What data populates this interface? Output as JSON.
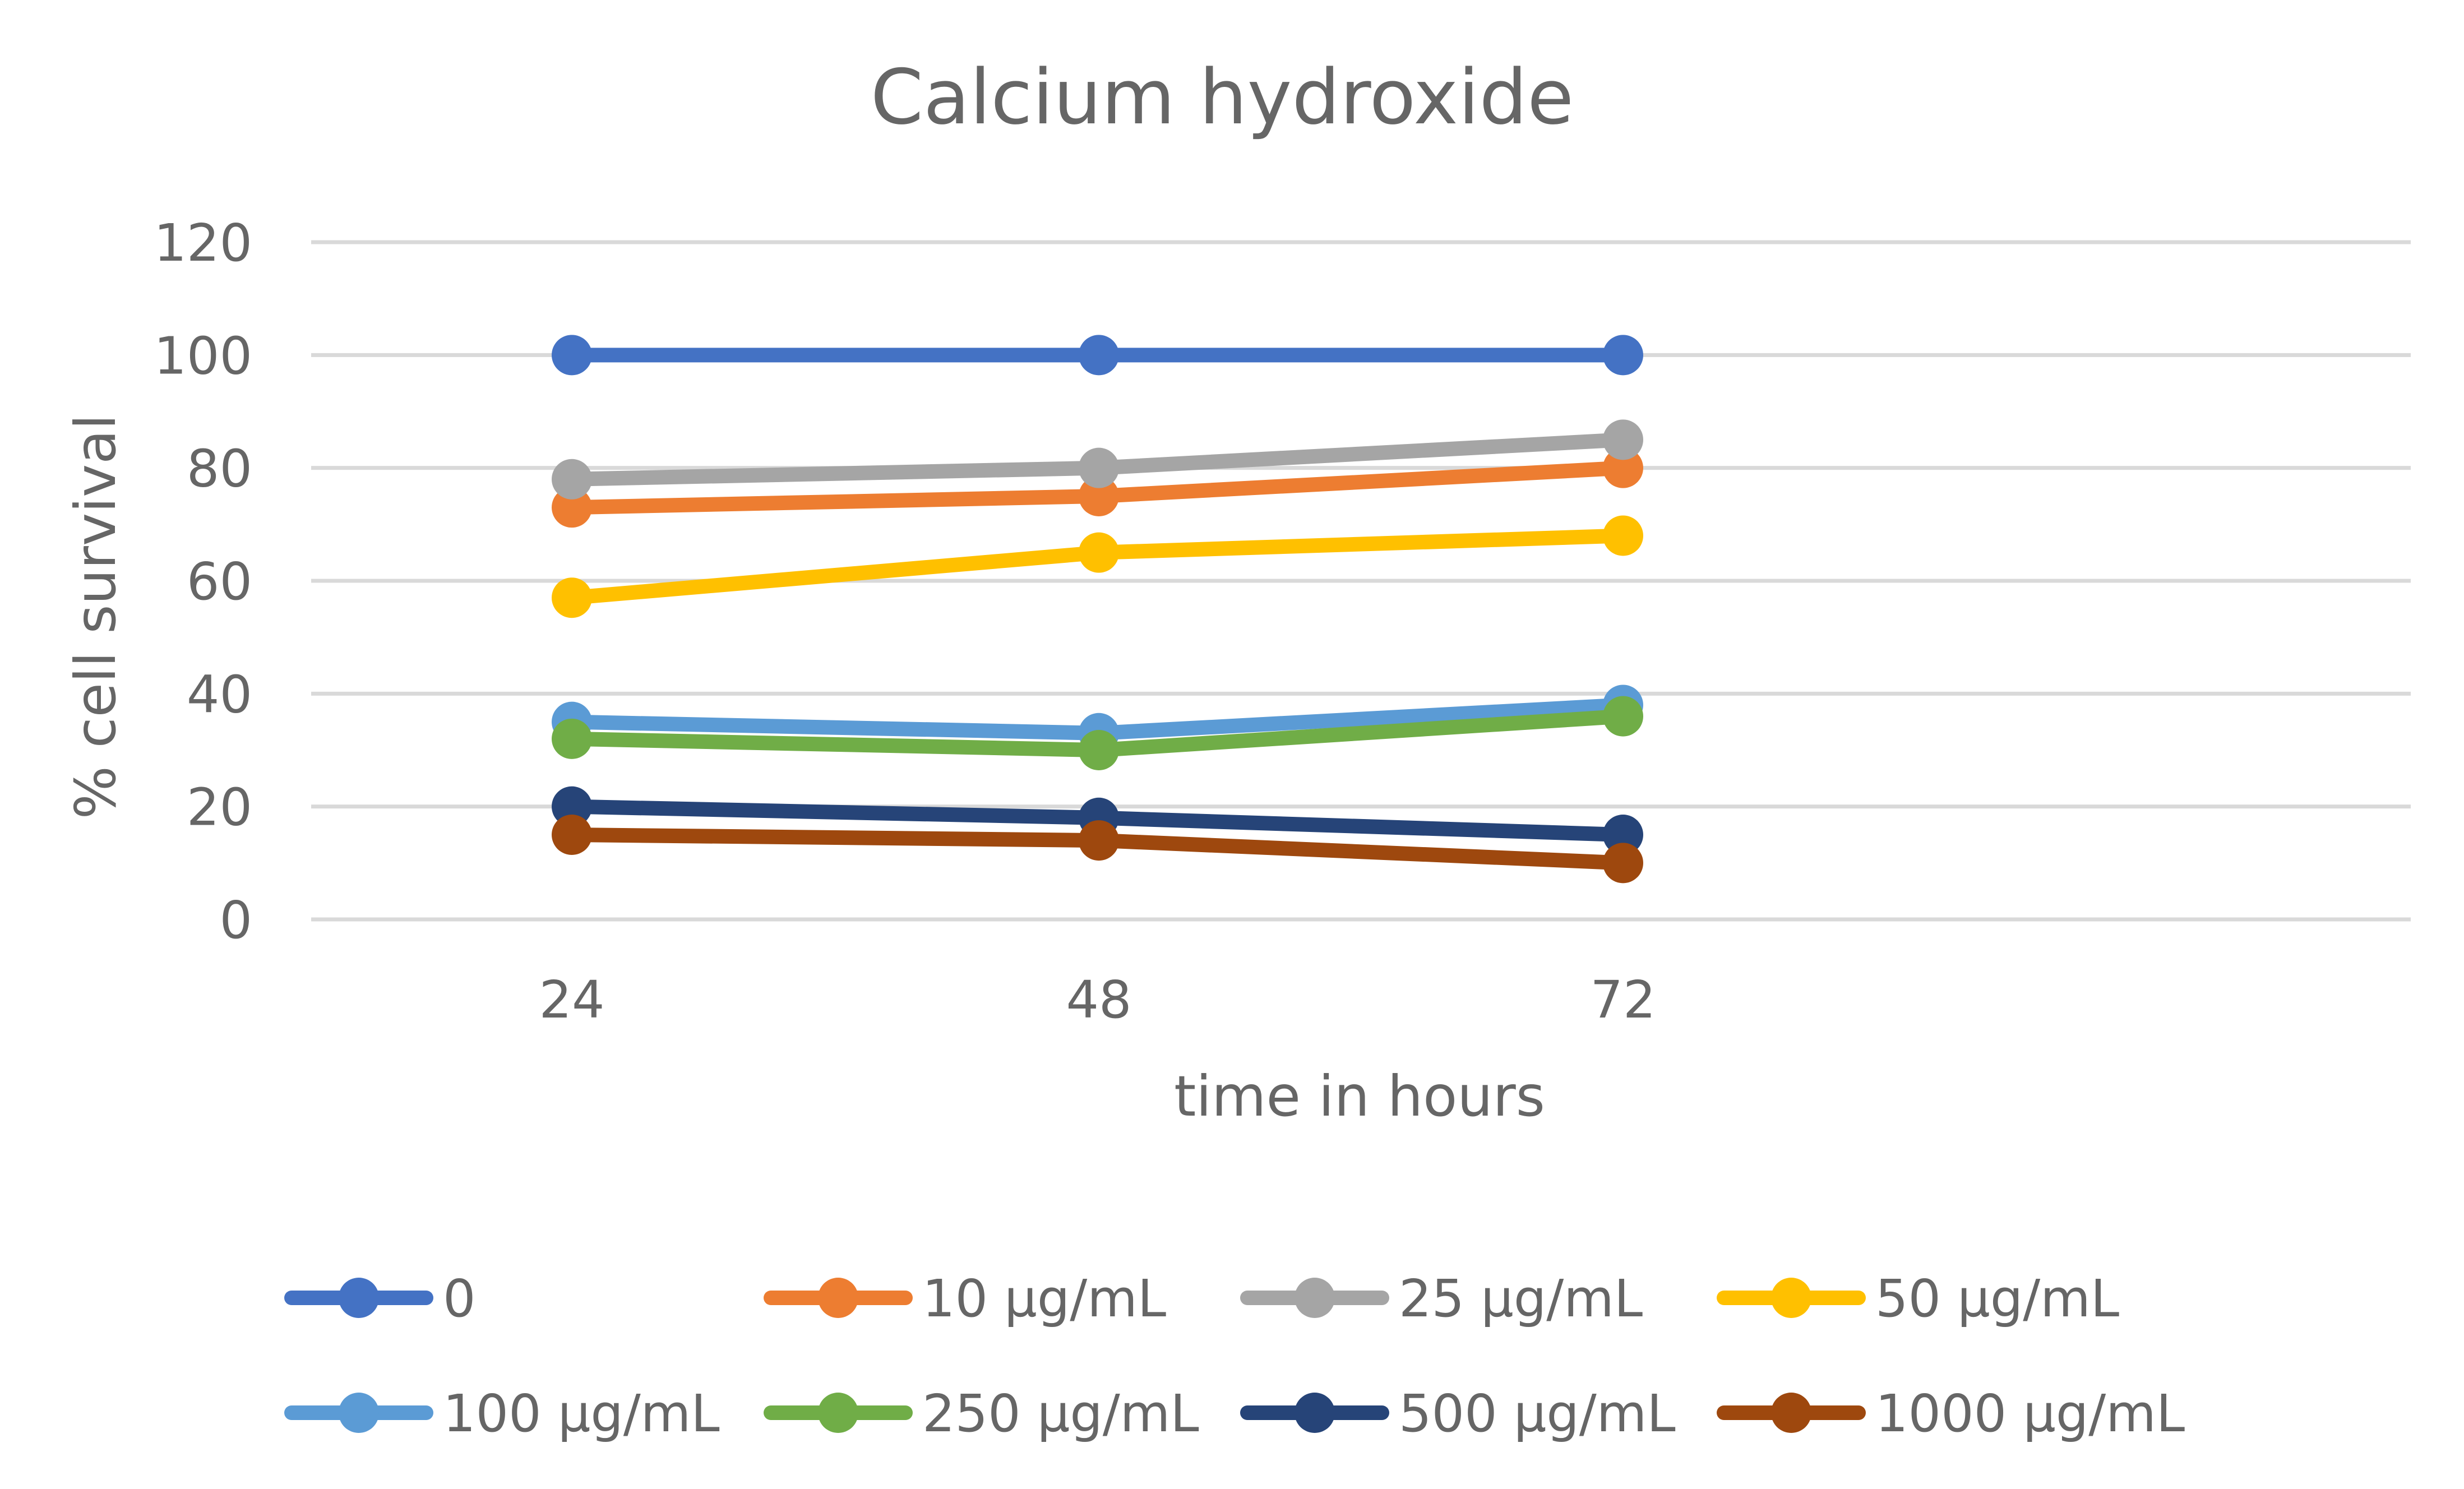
{
  "chart_data": {
    "type": "line",
    "title": "Calcium hydroxide",
    "xlabel": "time in hours",
    "ylabel": "% cell survival",
    "categories": [
      "24",
      "48",
      "72"
    ],
    "ylim": [
      0,
      120
    ],
    "yticks": [
      0,
      20,
      40,
      60,
      80,
      100,
      120
    ],
    "grid": true,
    "legend_position": "bottom",
    "series": [
      {
        "name": "0",
        "color": "#4472C4",
        "values": [
          100,
          100,
          100
        ]
      },
      {
        "name": "10 µg/mL",
        "color": "#ED7D31",
        "values": [
          73,
          75,
          80
        ]
      },
      {
        "name": "25 µg/mL",
        "color": "#A5A5A5",
        "values": [
          78,
          80,
          85
        ]
      },
      {
        "name": "50 µg/mL",
        "color": "#FFC000",
        "values": [
          57,
          65,
          68
        ]
      },
      {
        "name": "100 µg/mL",
        "color": "#5B9BD5",
        "values": [
          35,
          33,
          38
        ]
      },
      {
        "name": "250 µg/mL",
        "color": "#70AD47",
        "values": [
          32,
          30,
          36
        ]
      },
      {
        "name": "500 µg/mL",
        "color": "#264478",
        "values": [
          20,
          18,
          15
        ]
      },
      {
        "name": "1000 µg/mL",
        "color": "#9E480E",
        "values": [
          15,
          14,
          10
        ]
      }
    ]
  }
}
